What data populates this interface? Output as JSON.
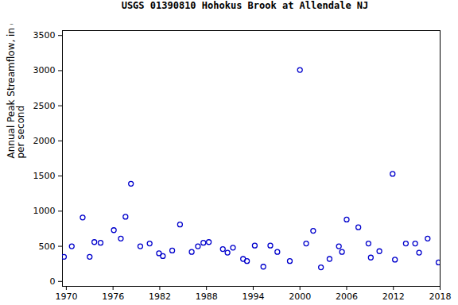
{
  "chart_data": {
    "type": "scatter",
    "title": "USGS 01390810 Hohokus Brook at Allendale NJ",
    "y_label": "Annual Peak Streamflow, in cubic feet\nper second",
    "x": [
      1969.7,
      1970.7,
      1972.1,
      1973.0,
      1973.6,
      1974.4,
      1976.1,
      1977.0,
      1977.6,
      1978.3,
      1979.5,
      1980.7,
      1981.9,
      1982.4,
      1983.6,
      1984.6,
      1986.1,
      1986.9,
      1987.6,
      1988.3,
      1990.1,
      1990.7,
      1991.4,
      1992.7,
      1993.2,
      1994.2,
      1995.3,
      1996.2,
      1997.1,
      1998.7,
      2000.0,
      2000.8,
      2001.7,
      2002.7,
      2003.8,
      2005.0,
      2005.4,
      2006.0,
      2007.5,
      2008.8,
      2009.1,
      2010.2,
      2011.9,
      2012.2,
      2013.6,
      2014.8,
      2015.3,
      2016.4,
      2017.8
    ],
    "values": [
      350,
      500,
      910,
      350,
      560,
      550,
      730,
      610,
      920,
      1390,
      500,
      540,
      400,
      360,
      440,
      810,
      420,
      500,
      550,
      560,
      460,
      410,
      480,
      320,
      290,
      510,
      210,
      510,
      420,
      290,
      3010,
      540,
      720,
      200,
      320,
      500,
      420,
      880,
      770,
      540,
      340,
      430,
      1530,
      310,
      540,
      540,
      410,
      610,
      270
    ],
    "color": "#0000cc",
    "marker": "circle",
    "xlim": [
      1969.5,
      2018
    ],
    "xticks": [
      1970,
      1976,
      1982,
      1988,
      1994,
      2000,
      2006,
      2012,
      2018
    ],
    "ylim": [
      -70,
      3570
    ],
    "yticks": [
      0,
      500,
      1000,
      1500,
      2000,
      2500,
      3000,
      3500
    ],
    "grid": false
  }
}
